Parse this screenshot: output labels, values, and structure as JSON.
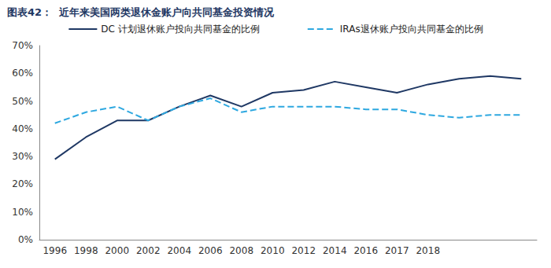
{
  "chart_data": {
    "type": "line",
    "title": "图表42：  近年来美国两类退休金账户向共同基金投资情况",
    "categories": [
      "1996",
      "1998",
      "2000",
      "2002",
      "2004",
      "2006",
      "2008",
      "2010",
      "2012",
      "2014",
      "2016",
      "2017",
      "2018",
      null,
      null,
      null
    ],
    "series": [
      {
        "name": "DC 计划退休账户投向共同基金的比例",
        "color": "#1f3864",
        "line_style": "solid",
        "values": [
          29,
          37,
          43,
          43,
          48,
          52,
          48,
          53,
          54,
          57,
          55,
          53,
          56,
          58,
          59,
          58
        ]
      },
      {
        "name": "IRAs退休账户投向共同基金的比例",
        "color": "#2ea8e0",
        "line_style": "dashed",
        "values": [
          42,
          46,
          48,
          43,
          48,
          51,
          46,
          48,
          48,
          48,
          47,
          47,
          45,
          44,
          45,
          45
        ]
      }
    ],
    "ylim": [
      0,
      70
    ],
    "yticks": [
      {
        "value": 0,
        "label": "0%"
      },
      {
        "value": 10,
        "label": "10%"
      },
      {
        "value": 20,
        "label": "20%"
      },
      {
        "value": 30,
        "label": "30%"
      },
      {
        "value": 40,
        "label": "40%"
      },
      {
        "value": 50,
        "label": "50%"
      },
      {
        "value": 60,
        "label": "60%"
      },
      {
        "value": 70,
        "label": "70%"
      }
    ],
    "grid": false,
    "legend": "top"
  }
}
